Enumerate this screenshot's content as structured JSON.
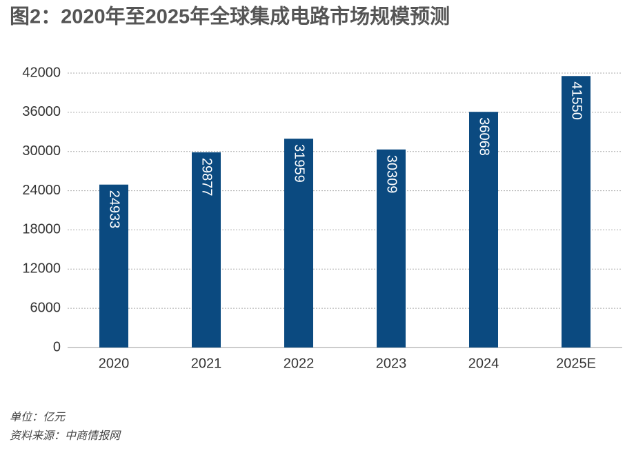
{
  "chart_data": {
    "type": "bar",
    "title": "图2：2020年至2025年全球集成电路市场规模预测",
    "categories": [
      "2020",
      "2021",
      "2022",
      "2023",
      "2024",
      "2025E"
    ],
    "values": [
      24933,
      29877,
      31959,
      30309,
      36068,
      41550
    ],
    "color": "#0b4a80",
    "ylim": [
      0,
      42000
    ],
    "yticks": [
      0,
      6000,
      12000,
      18000,
      24000,
      30000,
      36000,
      42000
    ],
    "grid": true,
    "notes": [
      "单位：亿元",
      "资料来源：中商情报网"
    ]
  }
}
